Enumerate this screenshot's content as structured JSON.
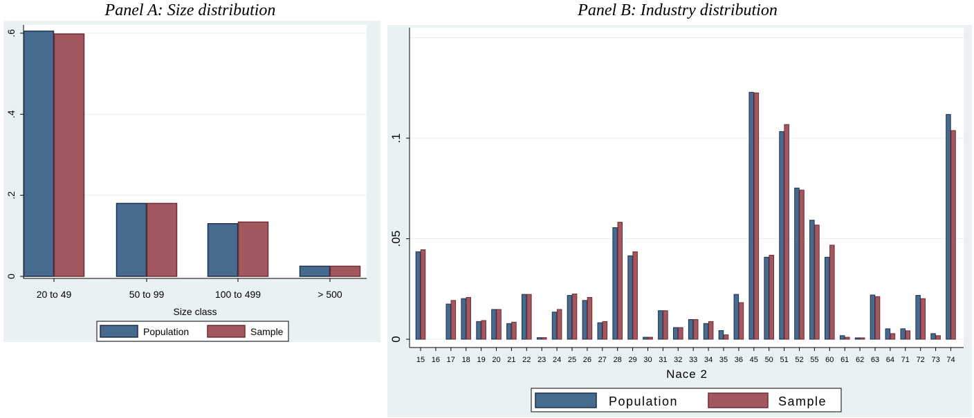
{
  "colors": {
    "population": "#476a8f",
    "sample": "#a3585f",
    "outline": "#1c2f4a",
    "sample_outline": "#6e2b33",
    "chart_bg": "#e9f1f3",
    "plot_bg": "#ffffff",
    "grid": "#e8eef0"
  },
  "chart_data": [
    {
      "type": "bar",
      "title": "Panel A: Size distribution",
      "xlabel": "Size class",
      "ylabel": "",
      "categories": [
        "20 to 49",
        "50 to 99",
        "100 to 499",
        "> 500"
      ],
      "series": [
        {
          "name": "Population",
          "values": [
            0.605,
            0.18,
            0.13,
            0.025
          ]
        },
        {
          "name": "Sample",
          "values": [
            0.598,
            0.18,
            0.134,
            0.025
          ]
        }
      ],
      "ylim": [
        0,
        0.6
      ],
      "yticks": [
        0,
        0.2,
        0.4,
        0.6
      ],
      "ytick_labels": [
        "0",
        ".2",
        ".4",
        ".6"
      ],
      "grid": true,
      "legend": "bottom"
    },
    {
      "type": "bar",
      "title": "Panel B: Industry distribution",
      "xlabel": "Nace 2",
      "ylabel": "",
      "categories": [
        "15",
        "16",
        "17",
        "18",
        "19",
        "20",
        "21",
        "22",
        "23",
        "24",
        "25",
        "26",
        "27",
        "28",
        "29",
        "30",
        "31",
        "32",
        "33",
        "34",
        "35",
        "36",
        "45",
        "50",
        "51",
        "52",
        "55",
        "60",
        "61",
        "62",
        "63",
        "64",
        "71",
        "72",
        "73",
        "74"
      ],
      "series": [
        {
          "name": "Population",
          "values": [
            0.0435,
            0,
            0.0175,
            0.0202,
            0.0088,
            0.0148,
            0.0078,
            0.0223,
            0.0008,
            0.0135,
            0.0218,
            0.0193,
            0.0082,
            0.0555,
            0.0415,
            0.001,
            0.0142,
            0.0058,
            0.0098,
            0.0078,
            0.0043,
            0.0223,
            0.1228,
            0.0408,
            0.1033,
            0.0752,
            0.0592,
            0.0408,
            0.0018,
            0.0007,
            0.022,
            0.0052,
            0.0052,
            0.0218,
            0.0028,
            0.1118
          ]
        },
        {
          "name": "Sample",
          "values": [
            0.0445,
            0,
            0.0193,
            0.0208,
            0.0093,
            0.0148,
            0.0085,
            0.0223,
            0.0008,
            0.0148,
            0.0225,
            0.0208,
            0.0088,
            0.0582,
            0.0435,
            0.001,
            0.0142,
            0.0058,
            0.0098,
            0.0088,
            0.0022,
            0.0182,
            0.1225,
            0.0418,
            0.1068,
            0.0742,
            0.0568,
            0.0468,
            0.001,
            0.0007,
            0.0212,
            0.0028,
            0.0042,
            0.0202,
            0.0018,
            0.1038
          ]
        }
      ],
      "ylim": [
        0,
        0.15
      ],
      "yticks": [
        0,
        0.05,
        0.1
      ],
      "ytick_labels": [
        "0",
        ".05",
        ".1"
      ],
      "grid": true,
      "legend": "bottom"
    }
  ]
}
